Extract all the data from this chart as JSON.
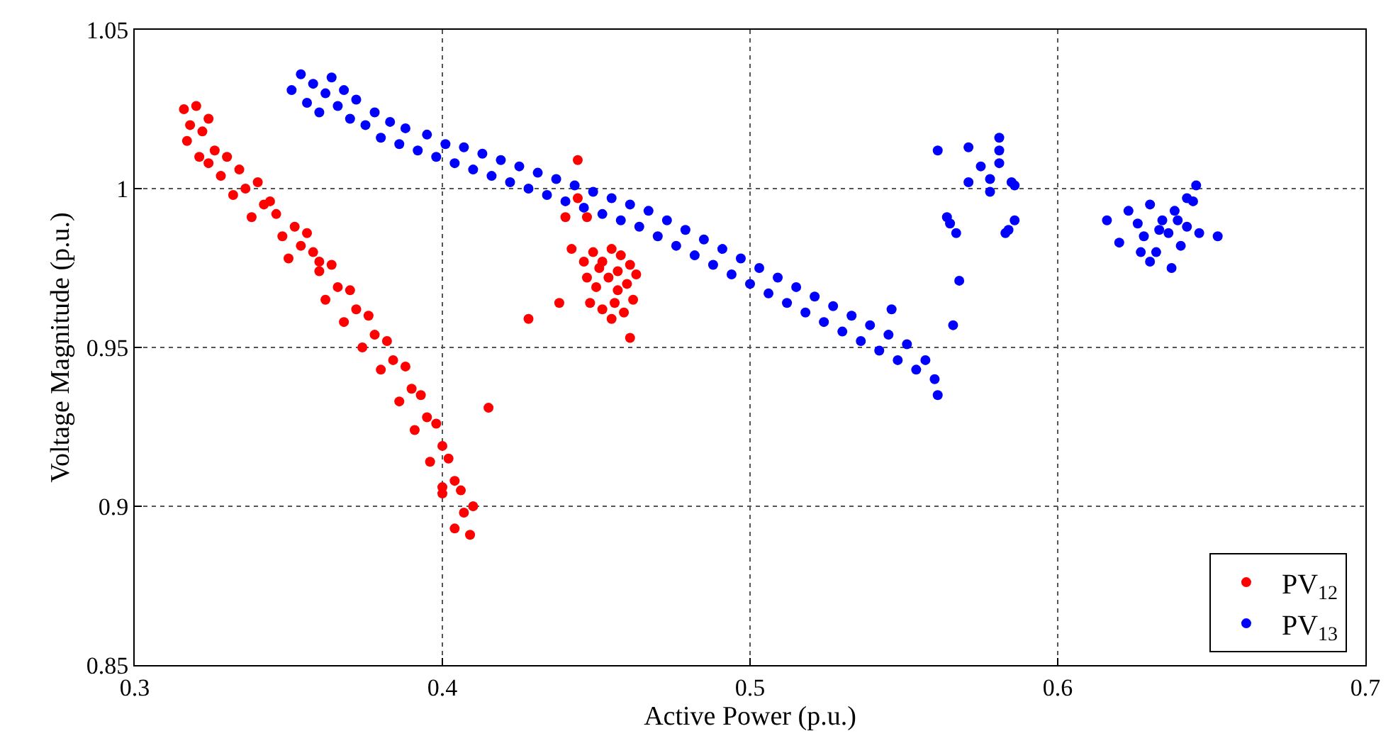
{
  "chart_data": {
    "type": "scatter",
    "xlabel": "Active Power (p.u.)",
    "ylabel": "Voltage Magnitude (p.u.)",
    "xlim": [
      0.3,
      0.7
    ],
    "xticks": [
      0.3,
      0.4,
      0.5,
      0.6,
      0.7
    ],
    "ylim": [
      0.85,
      1.05
    ],
    "yticks": [
      0.85,
      0.9,
      0.95,
      1,
      1.05
    ],
    "grid": true,
    "legend": "bottom right",
    "marker": "circle",
    "series": [
      {
        "name": "PV$_{12}$",
        "color": "#ff0000",
        "x": [
          0.316,
          0.318,
          0.32,
          0.322,
          0.317,
          0.324,
          0.326,
          0.321,
          0.33,
          0.328,
          0.334,
          0.336,
          0.332,
          0.34,
          0.342,
          0.338,
          0.346,
          0.348,
          0.344,
          0.352,
          0.354,
          0.35,
          0.358,
          0.36,
          0.356,
          0.364,
          0.366,
          0.362,
          0.37,
          0.372,
          0.368,
          0.376,
          0.378,
          0.374,
          0.382,
          0.384,
          0.38,
          0.388,
          0.39,
          0.386,
          0.393,
          0.395,
          0.391,
          0.398,
          0.4,
          0.396,
          0.402,
          0.404,
          0.4,
          0.406,
          0.407,
          0.404,
          0.409,
          0.41,
          0.415,
          0.324,
          0.36,
          0.4,
          0.428,
          0.438,
          0.442,
          0.44,
          0.447,
          0.444,
          0.444,
          0.449,
          0.452,
          0.455,
          0.458,
          0.461,
          0.447,
          0.45,
          0.454,
          0.457,
          0.46,
          0.463,
          0.448,
          0.452,
          0.456,
          0.459,
          0.462,
          0.455,
          0.451,
          0.457,
          0.446,
          0.461
        ],
        "values": [
          1.025,
          1.02,
          1.026,
          1.018,
          1.015,
          1.022,
          1.012,
          1.01,
          1.01,
          1.004,
          1.006,
          1.0,
          0.998,
          1.002,
          0.995,
          0.991,
          0.992,
          0.985,
          0.996,
          0.988,
          0.982,
          0.978,
          0.98,
          0.974,
          0.986,
          0.976,
          0.969,
          0.965,
          0.968,
          0.962,
          0.958,
          0.96,
          0.954,
          0.95,
          0.952,
          0.946,
          0.943,
          0.944,
          0.937,
          0.933,
          0.935,
          0.928,
          0.924,
          0.926,
          0.919,
          0.914,
          0.915,
          0.908,
          0.904,
          0.905,
          0.898,
          0.893,
          0.891,
          0.9,
          0.931,
          1.008,
          0.977,
          0.906,
          0.959,
          0.964,
          0.981,
          0.991,
          0.991,
          1.009,
          0.997,
          0.98,
          0.977,
          0.981,
          0.979,
          0.976,
          0.972,
          0.969,
          0.972,
          0.968,
          0.97,
          0.973,
          0.964,
          0.962,
          0.964,
          0.961,
          0.965,
          0.959,
          0.975,
          0.974,
          0.977,
          0.953
        ]
      },
      {
        "name": "PV$_{13}$",
        "color": "#0000ff",
        "x": [
          0.351,
          0.354,
          0.356,
          0.358,
          0.36,
          0.362,
          0.364,
          0.366,
          0.368,
          0.37,
          0.372,
          0.375,
          0.378,
          0.38,
          0.383,
          0.386,
          0.388,
          0.392,
          0.395,
          0.398,
          0.401,
          0.404,
          0.407,
          0.41,
          0.413,
          0.416,
          0.419,
          0.422,
          0.425,
          0.428,
          0.431,
          0.434,
          0.437,
          0.44,
          0.443,
          0.446,
          0.449,
          0.452,
          0.455,
          0.458,
          0.461,
          0.464,
          0.467,
          0.47,
          0.473,
          0.476,
          0.479,
          0.482,
          0.485,
          0.488,
          0.491,
          0.494,
          0.497,
          0.5,
          0.503,
          0.506,
          0.509,
          0.512,
          0.515,
          0.518,
          0.521,
          0.524,
          0.527,
          0.53,
          0.533,
          0.536,
          0.539,
          0.542,
          0.545,
          0.548,
          0.551,
          0.554,
          0.557,
          0.56,
          0.561,
          0.546,
          0.561,
          0.571,
          0.581,
          0.581,
          0.581,
          0.575,
          0.578,
          0.571,
          0.578,
          0.585,
          0.586,
          0.564,
          0.565,
          0.567,
          0.586,
          0.584,
          0.583,
          0.568,
          0.566,
          0.616,
          0.62,
          0.623,
          0.626,
          0.628,
          0.63,
          0.632,
          0.634,
          0.636,
          0.638,
          0.64,
          0.642,
          0.644,
          0.646,
          0.652,
          0.645,
          0.642,
          0.63,
          0.637,
          0.627,
          0.639,
          0.633
        ],
        "values": [
          1.031,
          1.036,
          1.027,
          1.033,
          1.024,
          1.03,
          1.035,
          1.026,
          1.031,
          1.022,
          1.028,
          1.02,
          1.024,
          1.016,
          1.021,
          1.014,
          1.019,
          1.012,
          1.017,
          1.01,
          1.014,
          1.008,
          1.013,
          1.006,
          1.011,
          1.004,
          1.009,
          1.002,
          1.007,
          1.0,
          1.005,
          0.998,
          1.003,
          0.996,
          1.001,
          0.994,
          0.999,
          0.992,
          0.997,
          0.99,
          0.995,
          0.988,
          0.993,
          0.985,
          0.99,
          0.982,
          0.987,
          0.979,
          0.984,
          0.976,
          0.981,
          0.973,
          0.978,
          0.97,
          0.975,
          0.967,
          0.972,
          0.964,
          0.969,
          0.961,
          0.966,
          0.958,
          0.963,
          0.955,
          0.96,
          0.952,
          0.957,
          0.949,
          0.954,
          0.946,
          0.951,
          0.943,
          0.946,
          0.94,
          0.935,
          0.962,
          1.012,
          1.013,
          1.016,
          1.012,
          1.008,
          1.007,
          1.003,
          1.002,
          0.999,
          1.002,
          1.001,
          0.991,
          0.989,
          0.986,
          0.99,
          0.987,
          0.986,
          0.971,
          0.957,
          0.99,
          0.983,
          0.993,
          0.989,
          0.985,
          0.995,
          0.98,
          0.99,
          0.986,
          0.993,
          0.982,
          0.988,
          0.996,
          0.986,
          0.985,
          1.001,
          0.997,
          0.977,
          0.975,
          0.98,
          0.99,
          0.987
        ]
      }
    ]
  }
}
